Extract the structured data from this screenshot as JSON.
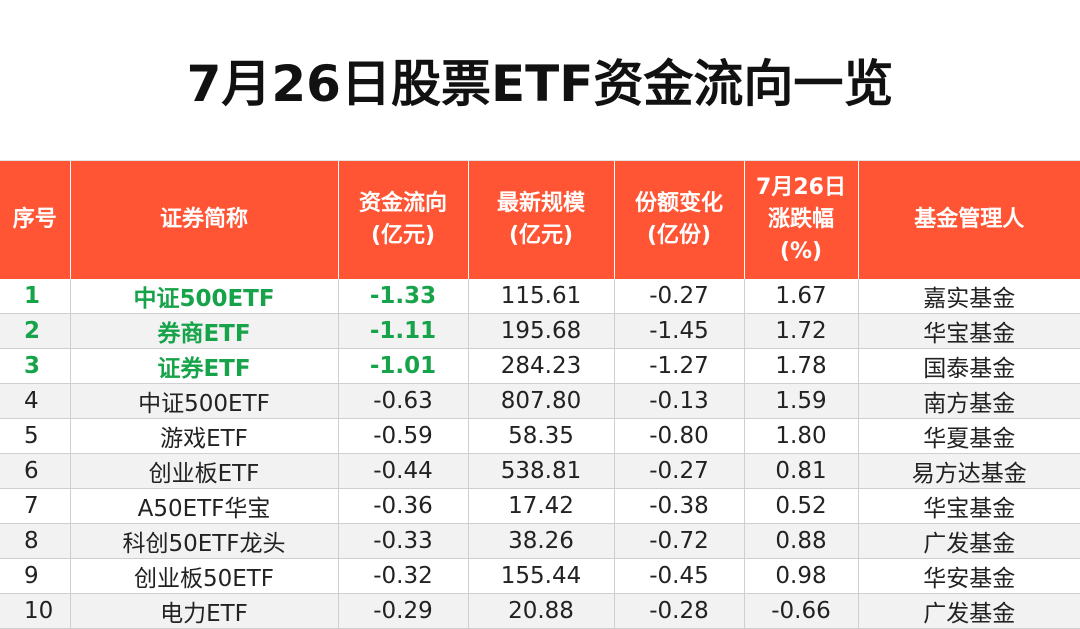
{
  "title": "7月26日股票ETF资金流向一览",
  "colors": {
    "header_bg": "#ff5534",
    "highlight_text": "#16a34a"
  },
  "headers": {
    "rank": "序号",
    "name": "证券简称",
    "flow_1": "资金流向",
    "flow_2": "(亿元)",
    "size_1": "最新规模",
    "size_2": "(亿元)",
    "share_1": "份额变化",
    "share_2": "(亿份)",
    "change_1": "7月26日",
    "change_2": "涨跌幅",
    "change_3": "(%)",
    "manager": "基金管理人"
  },
  "rows": [
    {
      "rank": "1",
      "name": "中证500ETF",
      "flow": "-1.33",
      "size": "115.61",
      "share": "-0.27",
      "change": "1.67",
      "manager": "嘉实基金",
      "highlight": true
    },
    {
      "rank": "2",
      "name": "券商ETF",
      "flow": "-1.11",
      "size": "195.68",
      "share": "-1.45",
      "change": "1.72",
      "manager": "华宝基金",
      "highlight": true
    },
    {
      "rank": "3",
      "name": "证券ETF",
      "flow": "-1.01",
      "size": "284.23",
      "share": "-1.27",
      "change": "1.78",
      "manager": "国泰基金",
      "highlight": true
    },
    {
      "rank": "4",
      "name": "中证500ETF",
      "flow": "-0.63",
      "size": "807.80",
      "share": "-0.13",
      "change": "1.59",
      "manager": "南方基金",
      "highlight": false
    },
    {
      "rank": "5",
      "name": "游戏ETF",
      "flow": "-0.59",
      "size": "58.35",
      "share": "-0.80",
      "change": "1.80",
      "manager": "华夏基金",
      "highlight": false
    },
    {
      "rank": "6",
      "name": "创业板ETF",
      "flow": "-0.44",
      "size": "538.81",
      "share": "-0.27",
      "change": "0.81",
      "manager": "易方达基金",
      "highlight": false
    },
    {
      "rank": "7",
      "name": "A50ETF华宝",
      "flow": "-0.36",
      "size": "17.42",
      "share": "-0.38",
      "change": "0.52",
      "manager": "华宝基金",
      "highlight": false
    },
    {
      "rank": "8",
      "name": "科创50ETF龙头",
      "flow": "-0.33",
      "size": "38.26",
      "share": "-0.72",
      "change": "0.88",
      "manager": "广发基金",
      "highlight": false
    },
    {
      "rank": "9",
      "name": "创业板50ETF",
      "flow": "-0.32",
      "size": "155.44",
      "share": "-0.45",
      "change": "0.98",
      "manager": "华安基金",
      "highlight": false
    },
    {
      "rank": "10",
      "name": "电力ETF",
      "flow": "-0.29",
      "size": "20.88",
      "share": "-0.28",
      "change": "-0.66",
      "manager": "广发基金",
      "highlight": false
    }
  ]
}
